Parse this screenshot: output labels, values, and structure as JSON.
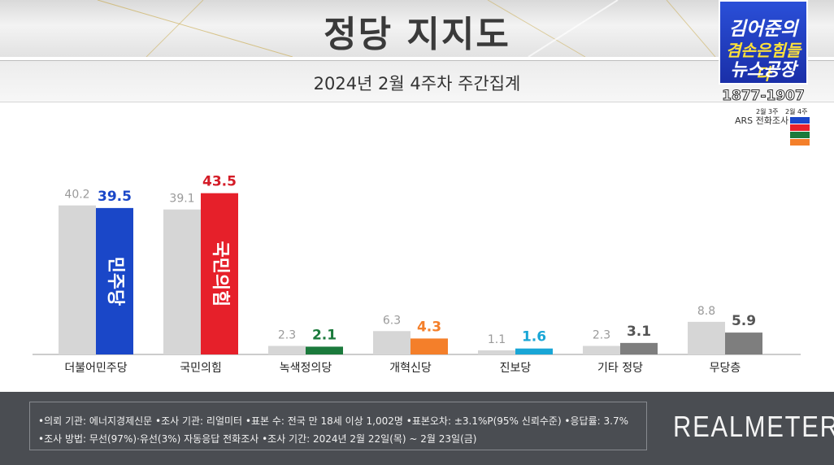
{
  "header": {
    "title": "정당 지지도",
    "subtitle": "2024년 2월 4주차 주간집계"
  },
  "show_logo": {
    "line1": "김어준의",
    "line2": "겸손은힘들다",
    "line3": "뉴스공장",
    "phone": "1877-1907",
    "prev_week_label": "2월 3주",
    "curr_week_label": "2월 4주",
    "method_label": "ARS 전화조사"
  },
  "chart_data": {
    "type": "bar",
    "categories": [
      "더불어민주당",
      "국민의힘",
      "녹색정의당",
      "개혁신당",
      "진보당",
      "기타 정당",
      "무당층"
    ],
    "series": [
      {
        "name": "2월 3주",
        "values": [
          40.2,
          39.1,
          2.3,
          6.3,
          1.1,
          2.3,
          8.8
        ]
      },
      {
        "name": "2월 4주",
        "values": [
          39.5,
          43.5,
          2.1,
          4.3,
          1.6,
          3.1,
          5.9
        ]
      }
    ],
    "bar_labels": [
      "민주당",
      "국민의힘"
    ],
    "ylim": [
      0,
      50
    ],
    "colors": {
      "previous": "#d6d6d6",
      "current": [
        "#1a47c8",
        "#e6202a",
        "#1b7a3c",
        "#f47f2a",
        "#19a6d6",
        "#7e7e7e",
        "#7e7e7e"
      ],
      "current_label": [
        "#1a47c8",
        "#d41c27",
        "#1b7a3c",
        "#f47f2a",
        "#19a6d6",
        "#555555",
        "#555555"
      ],
      "previous_label": "#9a9a9a"
    },
    "legend": "top-right",
    "grid": false
  },
  "footer": {
    "note_line1": "•의뢰 기관: 에너지경제신문  •조사 기관: 리얼미터 •표본 수: 전국 만 18세 이상 1,002명 •표본오차: ±3.1%P(95% 신뢰수준) •응답률: 3.7%",
    "note_line2": "•조사 방법: 무선(97%)·유선(3%) 자동응답 전화조사 •조사 기간: 2024년 2월 22일(목) ~ 2월 23일(금)",
    "brand": "REALMETER"
  }
}
